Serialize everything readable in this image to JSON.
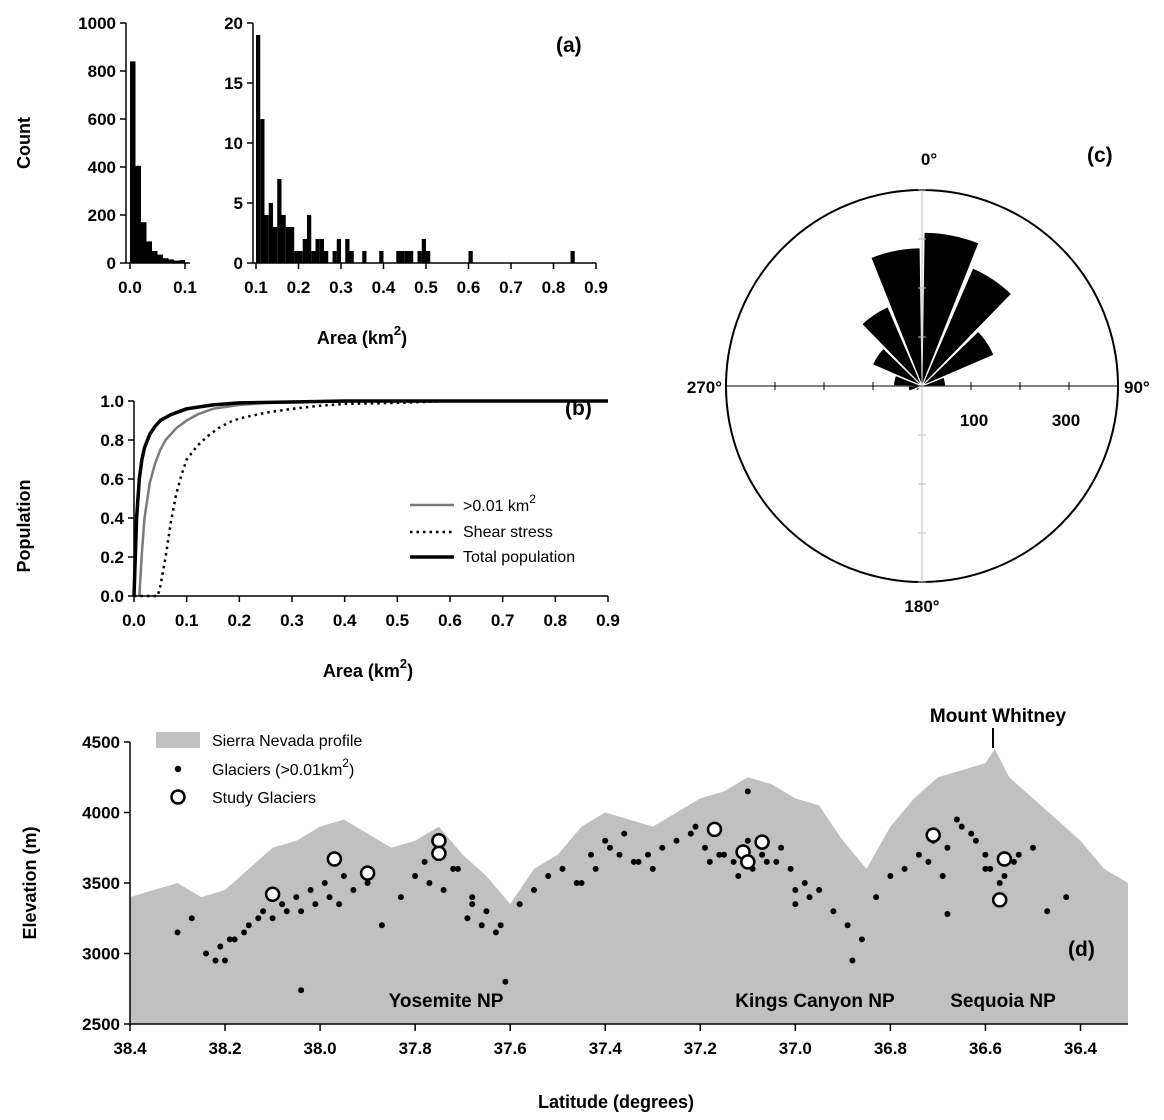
{
  "chart_data": [
    {
      "panel": "(a)",
      "type": "bar",
      "ylabel": "Count",
      "xlabel": "Area (km",
      "xlabel_sup": "2",
      "xlabel_end": ")",
      "left": {
        "xlim": [
          0,
          0.1
        ],
        "ylim": [
          0,
          1000
        ],
        "xticks": [
          "0.0",
          "0.1"
        ],
        "yticks": [
          "0",
          "200",
          "400",
          "600",
          "800",
          "1000"
        ],
        "bin_width": 0.01,
        "values": [
          840,
          405,
          170,
          90,
          50,
          35,
          20,
          15,
          10,
          12
        ]
      },
      "right": {
        "xlim": [
          0.1,
          0.9
        ],
        "ylim": [
          0,
          20
        ],
        "xticks": [
          "0.1",
          "0.2",
          "0.3",
          "0.4",
          "0.5",
          "0.6",
          "0.7",
          "0.8",
          "0.9"
        ],
        "yticks": [
          "0",
          "5",
          "10",
          "15",
          "20"
        ],
        "bin_width": 0.01,
        "values": [
          19,
          12,
          4,
          5,
          3,
          7,
          4,
          3,
          3,
          1,
          1,
          2,
          4,
          1,
          2,
          2,
          1,
          0,
          1,
          2,
          0,
          2,
          1,
          0,
          0,
          1,
          0,
          0,
          0,
          1,
          0,
          0,
          0,
          1,
          1,
          1,
          1,
          0,
          1,
          2,
          1,
          0,
          0,
          0,
          0,
          0,
          0,
          0,
          0,
          0,
          1,
          0,
          0,
          0,
          0,
          0,
          0,
          0,
          0,
          0,
          0,
          0,
          0,
          0,
          0,
          0,
          0,
          0,
          0,
          0,
          0,
          0,
          0,
          0,
          1,
          0
        ]
      }
    },
    {
      "panel": "(b)",
      "type": "line",
      "ylabel": "Population",
      "xlabel": "Area (km",
      "xlabel_sup": "2",
      "xlabel_end": ")",
      "xlim": [
        0,
        0.9
      ],
      "ylim": [
        0,
        1.0
      ],
      "xticks": [
        "0.0",
        "0.1",
        "0.2",
        "0.3",
        "0.4",
        "0.5",
        "0.6",
        "0.7",
        "0.8",
        "0.9"
      ],
      "yticks": [
        "0.0",
        "0.2",
        "0.4",
        "0.6",
        "0.8",
        "1.0"
      ],
      "legend": [
        {
          "label": ">0.01 km",
          "sup": "2"
        },
        {
          "label": "Shear stress",
          "sup": ""
        },
        {
          "label": "Total population",
          "sup": ""
        }
      ],
      "series": [
        {
          "style": "gray",
          "x": [
            0.01,
            0.015,
            0.02,
            0.03,
            0.04,
            0.05,
            0.06,
            0.08,
            0.1,
            0.12,
            0.15,
            0.2,
            0.25,
            0.3,
            0.4,
            0.5,
            0.6,
            0.7,
            0.8,
            0.9
          ],
          "y": [
            0.0,
            0.22,
            0.4,
            0.58,
            0.68,
            0.75,
            0.8,
            0.86,
            0.9,
            0.93,
            0.96,
            0.98,
            0.99,
            0.995,
            0.998,
            1.0,
            1.0,
            1.0,
            1.0,
            1.0
          ]
        },
        {
          "style": "dotted",
          "x": [
            0.0,
            0.03,
            0.045,
            0.05,
            0.06,
            0.07,
            0.08,
            0.09,
            0.1,
            0.12,
            0.14,
            0.16,
            0.18,
            0.2,
            0.25,
            0.3,
            0.35,
            0.4,
            0.5,
            0.6,
            0.7,
            0.8,
            0.9
          ],
          "y": [
            0.0,
            0.0,
            0.0,
            0.05,
            0.2,
            0.38,
            0.52,
            0.62,
            0.7,
            0.77,
            0.82,
            0.86,
            0.89,
            0.91,
            0.94,
            0.96,
            0.975,
            0.985,
            0.99,
            1.0,
            1.0,
            1.0,
            1.0
          ]
        },
        {
          "style": "black",
          "x": [
            0.0,
            0.005,
            0.01,
            0.015,
            0.02,
            0.03,
            0.04,
            0.05,
            0.07,
            0.1,
            0.15,
            0.2,
            0.3,
            0.4,
            0.5,
            0.6,
            0.7,
            0.8,
            0.9
          ],
          "y": [
            0.0,
            0.4,
            0.6,
            0.7,
            0.76,
            0.83,
            0.87,
            0.9,
            0.93,
            0.96,
            0.98,
            0.99,
            0.995,
            1.0,
            1.0,
            1.0,
            1.0,
            1.0,
            1.0
          ]
        }
      ]
    },
    {
      "panel": "(c)",
      "type": "rose",
      "direction_labels": [
        "0°",
        "90°",
        "180°",
        "270°"
      ],
      "ring_labels": [
        "100",
        "300"
      ],
      "max_radius_value": 400,
      "bin_width_deg": 22.5,
      "petals": [
        {
          "center_deg": 348.75,
          "value": 282
        },
        {
          "center_deg": 11.25,
          "value": 314
        },
        {
          "center_deg": 33.75,
          "value": 262
        },
        {
          "center_deg": 56.25,
          "value": 160
        },
        {
          "center_deg": 78.75,
          "value": 48
        },
        {
          "center_deg": 101.25,
          "value": 8
        },
        {
          "center_deg": 123.75,
          "value": 4
        },
        {
          "center_deg": 146.25,
          "value": 2
        },
        {
          "center_deg": 168.75,
          "value": 2
        },
        {
          "center_deg": 191.25,
          "value": 2
        },
        {
          "center_deg": 213.75,
          "value": 4
        },
        {
          "center_deg": 236.25,
          "value": 14
        },
        {
          "center_deg": 258.75,
          "value": 28
        },
        {
          "center_deg": 281.25,
          "value": 58
        },
        {
          "center_deg": 303.75,
          "value": 110
        },
        {
          "center_deg": 326.25,
          "value": 176
        }
      ]
    },
    {
      "panel": "(d)",
      "type": "scatter",
      "ylabel": "Elevation (m)",
      "xlabel": "Latitude (degrees)",
      "xlim": [
        38.4,
        36.3
      ],
      "ylim": [
        2500,
        4500
      ],
      "xticks": [
        "38.4",
        "38.2",
        "38.0",
        "37.8",
        "37.6",
        "37.4",
        "37.2",
        "37.0",
        "36.8",
        "36.6",
        "36.4"
      ],
      "yticks": [
        "2500",
        "3000",
        "3500",
        "4000",
        "4500"
      ],
      "legend": [
        {
          "label": "Sierra Nevada profile",
          "sup": "",
          "end": ""
        },
        {
          "label": "Glaciers (>0.01km",
          "sup": "2",
          "end": ")"
        },
        {
          "label": "Study Glaciers",
          "sup": "",
          "end": ""
        }
      ],
      "annotations": [
        {
          "text": "Mount Whitney",
          "x": 36.58,
          "y": 4390
        },
        {
          "text": "Yosemite NP",
          "x": 37.83,
          "y": 2590
        },
        {
          "text": "Kings Canyon NP",
          "x": 37.05,
          "y": 2590
        },
        {
          "text": "Sequoia NP",
          "x": 36.61,
          "y": 2590
        }
      ],
      "profile": {
        "x": [
          38.4,
          38.35,
          38.3,
          38.25,
          38.2,
          38.15,
          38.1,
          38.05,
          38.0,
          37.95,
          37.9,
          37.85,
          37.8,
          37.75,
          37.7,
          37.65,
          37.6,
          37.55,
          37.5,
          37.45,
          37.4,
          37.35,
          37.3,
          37.25,
          37.2,
          37.15,
          37.1,
          37.05,
          37.0,
          36.95,
          36.9,
          36.85,
          36.8,
          36.75,
          36.7,
          36.65,
          36.6,
          36.58,
          36.55,
          36.5,
          36.45,
          36.4,
          36.35,
          36.3
        ],
        "y": [
          3400,
          3450,
          3500,
          3400,
          3450,
          3600,
          3750,
          3800,
          3900,
          3950,
          3850,
          3750,
          3800,
          3900,
          3700,
          3550,
          3350,
          3600,
          3700,
          3900,
          4000,
          3950,
          3900,
          4000,
          4100,
          4150,
          4250,
          4200,
          4100,
          4050,
          3800,
          3600,
          3900,
          4100,
          4250,
          4300,
          4350,
          4450,
          4250,
          4100,
          3950,
          3800,
          3600,
          3500
        ]
      },
      "glaciers": {
        "x": [
          38.27,
          38.24,
          38.21,
          38.18,
          38.15,
          38.12,
          38.08,
          38.05,
          38.02,
          37.99,
          37.96,
          37.93,
          37.9,
          37.87,
          37.83,
          37.8,
          37.77,
          37.74,
          37.71,
          37.68,
          37.65,
          37.62,
          37.58,
          37.55,
          37.52,
          37.49,
          37.46,
          37.43,
          37.4,
          37.37,
          37.34,
          37.31,
          37.28,
          37.25,
          37.22,
          37.19,
          37.16,
          37.13,
          37.1,
          37.07,
          37.04,
          37.01,
          36.98,
          36.95,
          36.92,
          36.89,
          36.86,
          36.83,
          36.8,
          36.77,
          36.74,
          36.71,
          36.68,
          36.65,
          36.62,
          36.59,
          36.56,
          36.53,
          36.5,
          36.47,
          36.43,
          38.22,
          38.19,
          38.16,
          38.13,
          38.1,
          38.07,
          38.04,
          38.01,
          37.98,
          37.95,
          37.78,
          37.75,
          37.72,
          37.69,
          37.66,
          37.63,
          37.45,
          37.42,
          37.39,
          37.36,
          37.33,
          37.3,
          37.21,
          37.18,
          37.15,
          37.12,
          37.09,
          37.06,
          37.03,
          37.0,
          36.97,
          36.72,
          36.69,
          36.66,
          36.63,
          36.6,
          36.57,
          36.54,
          38.04,
          37.61,
          36.88,
          37.1,
          38.3,
          37.68,
          37.0,
          36.68,
          36.6,
          38.2
        ],
        "y": [
          3250,
          3000,
          3050,
          3100,
          3200,
          3300,
          3350,
          3400,
          3450,
          3500,
          3350,
          3450,
          3500,
          3200,
          3400,
          3550,
          3500,
          3450,
          3600,
          3350,
          3300,
          3200,
          3350,
          3450,
          3550,
          3600,
          3500,
          3700,
          3800,
          3700,
          3650,
          3700,
          3750,
          3800,
          3850,
          3750,
          3700,
          3650,
          3800,
          3700,
          3650,
          3600,
          3500,
          3450,
          3300,
          3200,
          3100,
          3400,
          3550,
          3600,
          3700,
          3800,
          3750,
          3900,
          3800,
          3600,
          3550,
          3700,
          3750,
          3300,
          3400,
          2950,
          3100,
          3150,
          3250,
          3250,
          3300,
          3300,
          3350,
          3400,
          3550,
          3650,
          3700,
          3600,
          3250,
          3200,
          3150,
          3500,
          3600,
          3750,
          3850,
          3650,
          3600,
          3900,
          3650,
          3700,
          3550,
          3600,
          3650,
          3750,
          3450,
          3400,
          3650,
          3550,
          3950,
          3850,
          3700,
          3500,
          3650,
          2740,
          2800,
          2950,
          4150,
          3150,
          3400,
          3350,
          3280,
          3600,
          2950
        ]
      },
      "study_glaciers": {
        "x": [
          38.1,
          37.97,
          37.9,
          37.75,
          37.75,
          37.17,
          37.11,
          37.1,
          37.07,
          36.71,
          36.56,
          36.57
        ],
        "y": [
          3420,
          3670,
          3570,
          3800,
          3710,
          3880,
          3720,
          3650,
          3790,
          3840,
          3670,
          3380
        ]
      }
    }
  ]
}
